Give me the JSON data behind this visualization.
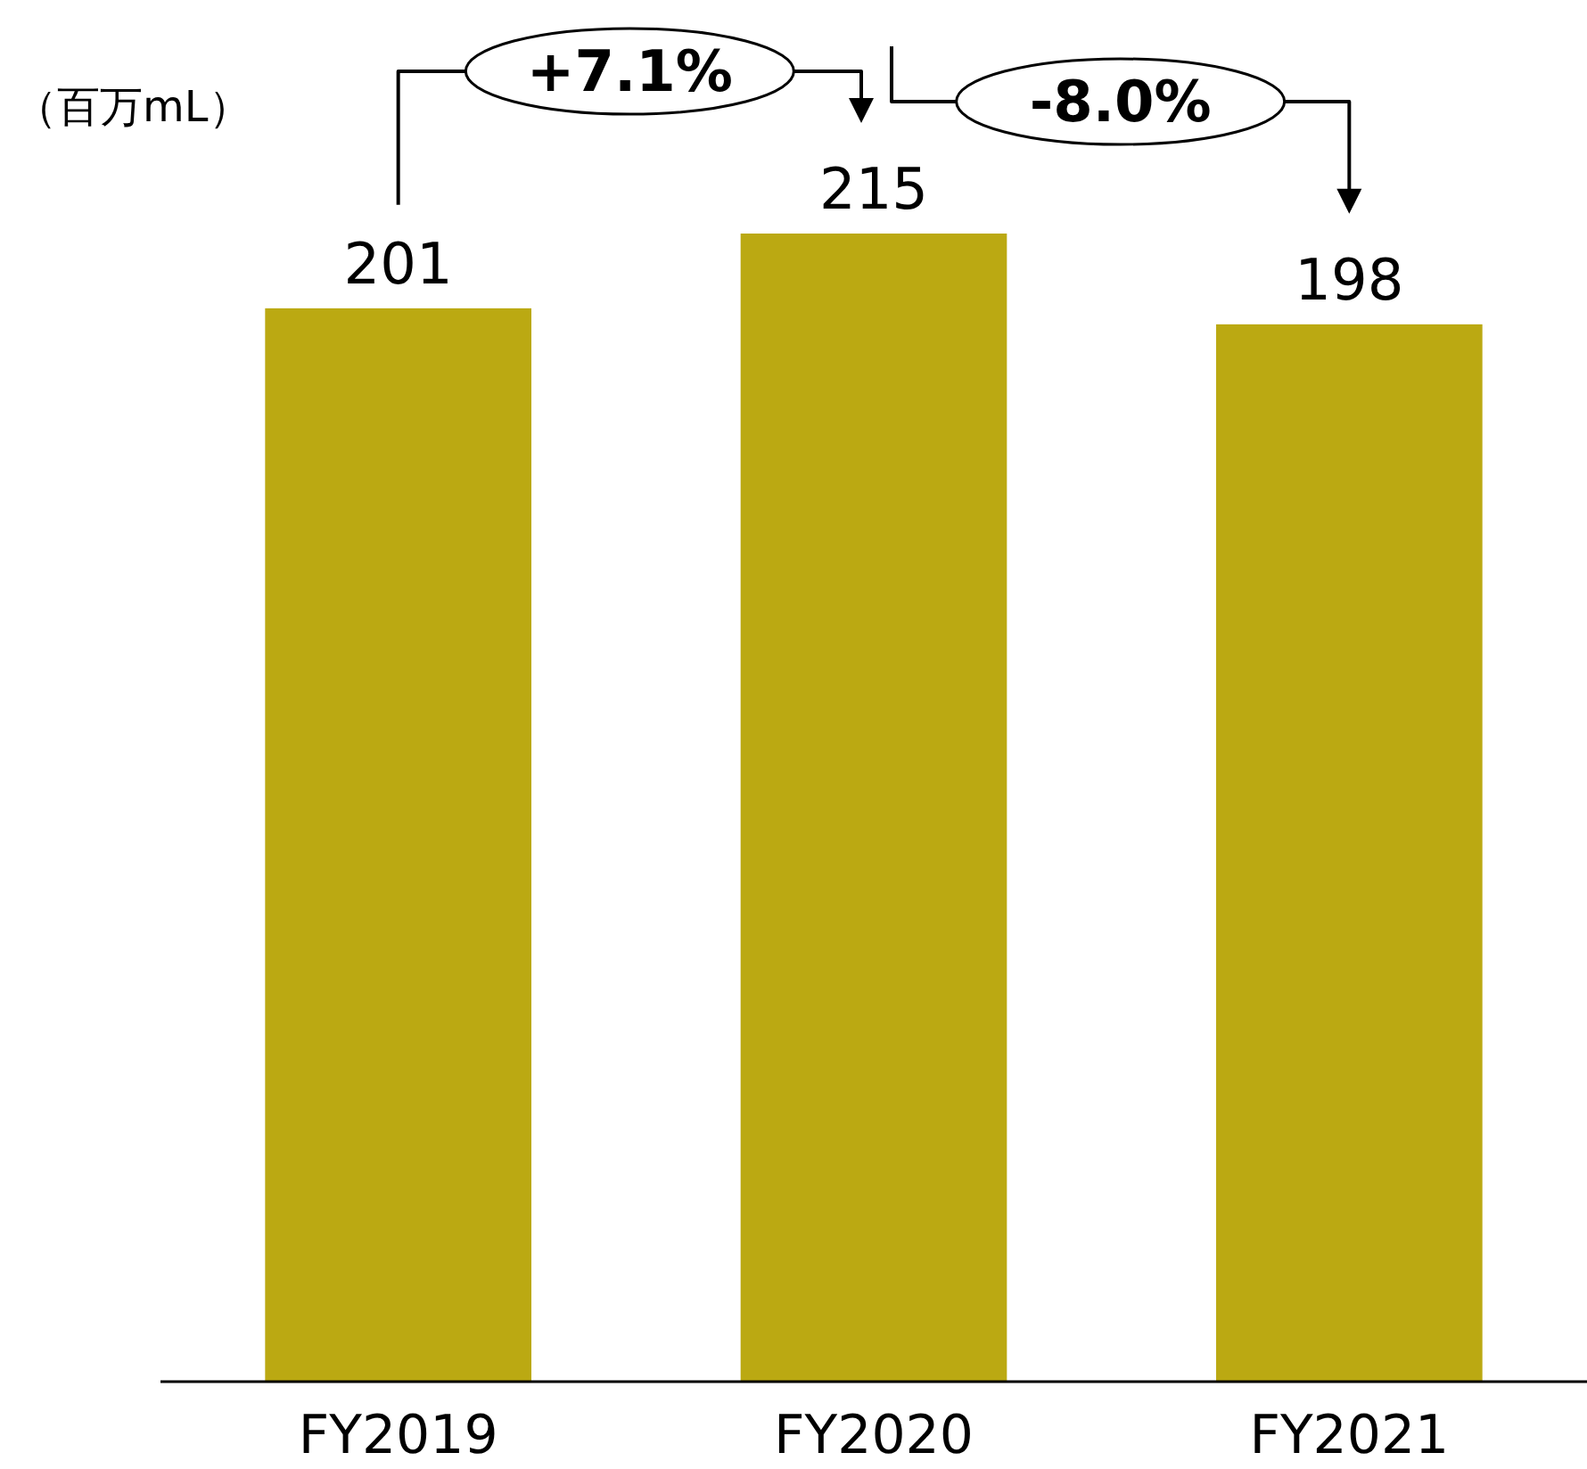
{
  "chart_data": {
    "type": "bar",
    "ylabel": "（百万mL）",
    "categories": [
      "FY2019",
      "FY2020",
      "FY2021"
    ],
    "values": [
      201,
      215,
      198
    ],
    "color": "#bba912",
    "data_labels": true,
    "annotations": [
      "+7.1%",
      "-8.0%"
    ]
  }
}
